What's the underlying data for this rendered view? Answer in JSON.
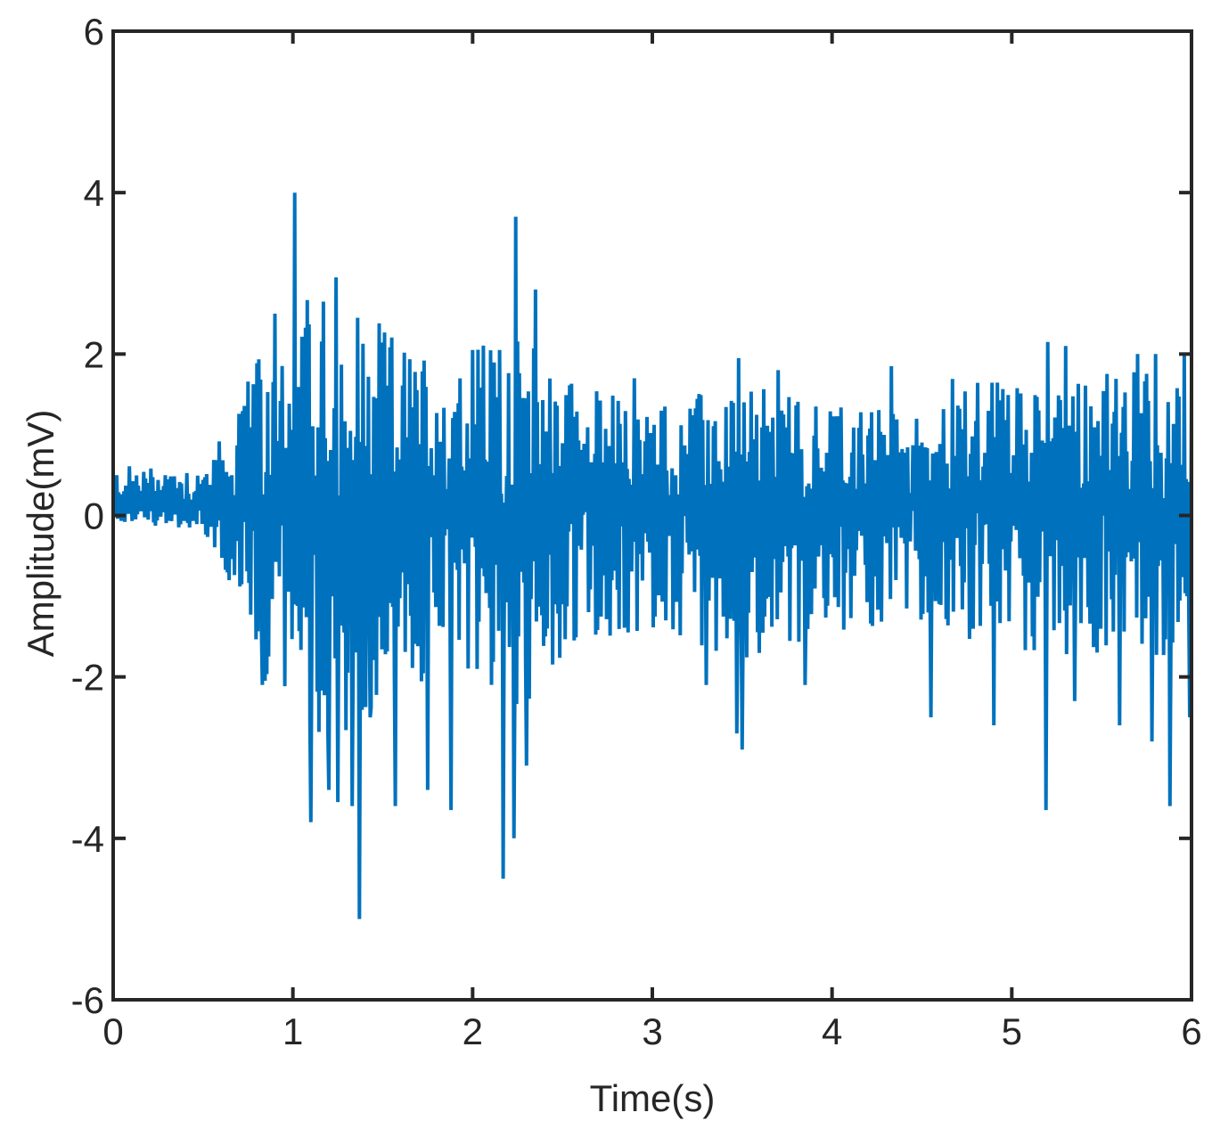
{
  "chart_data": {
    "type": "line",
    "title": "",
    "xlabel": "Time(s)",
    "ylabel": "Amplitude(mV)",
    "xlim": [
      0,
      6
    ],
    "ylim": [
      -6,
      6
    ],
    "xticks": [
      0,
      1,
      2,
      3,
      4,
      5,
      6
    ],
    "yticks": [
      -6,
      -4,
      -2,
      0,
      2,
      4,
      6
    ],
    "xtick_labels": [
      "0",
      "1",
      "2",
      "3",
      "4",
      "5",
      "6"
    ],
    "ytick_labels": [
      "-6",
      "-4",
      "-2",
      "0",
      "2",
      "4",
      "6"
    ],
    "grid": false,
    "legend": "none",
    "series_color": "#0072BD",
    "series": [
      {
        "sample_interval_s": 0.005,
        "envelope": [
          {
            "t": 0.0,
            "pos": 0.5,
            "neg": -0.2
          },
          {
            "t": 0.5,
            "pos": 0.5,
            "neg": -0.3
          },
          {
            "t": 0.6,
            "pos": 0.9,
            "neg": -0.8
          },
          {
            "t": 0.8,
            "pos": 1.8,
            "neg": -2.0
          },
          {
            "t": 1.0,
            "pos": 2.6,
            "neg": -2.8
          },
          {
            "t": 1.3,
            "pos": 2.7,
            "neg": -3.0
          },
          {
            "t": 1.6,
            "pos": 2.0,
            "neg": -2.2
          },
          {
            "t": 2.0,
            "pos": 2.0,
            "neg": -2.3
          },
          {
            "t": 2.3,
            "pos": 2.1,
            "neg": -2.5
          },
          {
            "t": 2.6,
            "pos": 1.5,
            "neg": -1.7
          },
          {
            "t": 3.0,
            "pos": 1.3,
            "neg": -1.6
          },
          {
            "t": 3.5,
            "pos": 1.5,
            "neg": -1.9
          },
          {
            "t": 4.0,
            "pos": 1.3,
            "neg": -1.6
          },
          {
            "t": 4.6,
            "pos": 1.1,
            "neg": -1.4
          },
          {
            "t": 4.65,
            "pos": 1.6,
            "neg": -1.6
          },
          {
            "t": 5.0,
            "pos": 1.7,
            "neg": -1.8
          },
          {
            "t": 5.5,
            "pos": 1.7,
            "neg": -1.9
          },
          {
            "t": 6.0,
            "pos": 1.7,
            "neg": -1.9
          }
        ],
        "peaks": [
          {
            "t": 0.83,
            "v": 2.4
          },
          {
            "t": 0.83,
            "v": -2.1
          },
          {
            "t": 0.9,
            "v": 2.5
          },
          {
            "t": 1.01,
            "v": 4.0
          },
          {
            "t": 1.1,
            "v": 3.2
          },
          {
            "t": 1.1,
            "v": -3.8
          },
          {
            "t": 1.17,
            "v": 2.65
          },
          {
            "t": 1.2,
            "v": -3.4
          },
          {
            "t": 1.24,
            "v": 2.95
          },
          {
            "t": 1.25,
            "v": -3.55
          },
          {
            "t": 1.33,
            "v": 3.2
          },
          {
            "t": 1.33,
            "v": -3.6
          },
          {
            "t": 1.37,
            "v": 3.75
          },
          {
            "t": 1.37,
            "v": -5.0
          },
          {
            "t": 1.43,
            "v": -2.5
          },
          {
            "t": 1.57,
            "v": -3.6
          },
          {
            "t": 1.75,
            "v": 2.1
          },
          {
            "t": 1.75,
            "v": -3.4
          },
          {
            "t": 1.88,
            "v": -3.65
          },
          {
            "t": 2.0,
            "v": 2.05
          },
          {
            "t": 2.17,
            "v": -4.5
          },
          {
            "t": 2.23,
            "v": -4.0
          },
          {
            "t": 2.24,
            "v": 3.7
          },
          {
            "t": 2.3,
            "v": -3.1
          },
          {
            "t": 2.35,
            "v": 2.8
          },
          {
            "t": 2.9,
            "v": 1.7
          },
          {
            "t": 3.3,
            "v": -2.1
          },
          {
            "t": 3.47,
            "v": -2.7
          },
          {
            "t": 3.48,
            "v": 1.95
          },
          {
            "t": 3.5,
            "v": -2.9
          },
          {
            "t": 3.7,
            "v": 1.8
          },
          {
            "t": 3.85,
            "v": -2.1
          },
          {
            "t": 4.33,
            "v": 1.85
          },
          {
            "t": 4.55,
            "v": -2.5
          },
          {
            "t": 4.9,
            "v": -2.6
          },
          {
            "t": 5.19,
            "v": -3.65
          },
          {
            "t": 5.2,
            "v": 2.15
          },
          {
            "t": 5.3,
            "v": 2.1
          },
          {
            "t": 5.35,
            "v": -2.3
          },
          {
            "t": 5.6,
            "v": -2.6
          },
          {
            "t": 5.7,
            "v": 2.0
          },
          {
            "t": 5.78,
            "v": -2.8
          },
          {
            "t": 5.8,
            "v": 2.0
          },
          {
            "t": 5.88,
            "v": -3.6
          },
          {
            "t": 5.96,
            "v": 2.0
          },
          {
            "t": 5.99,
            "v": -2.5
          }
        ]
      }
    ]
  }
}
